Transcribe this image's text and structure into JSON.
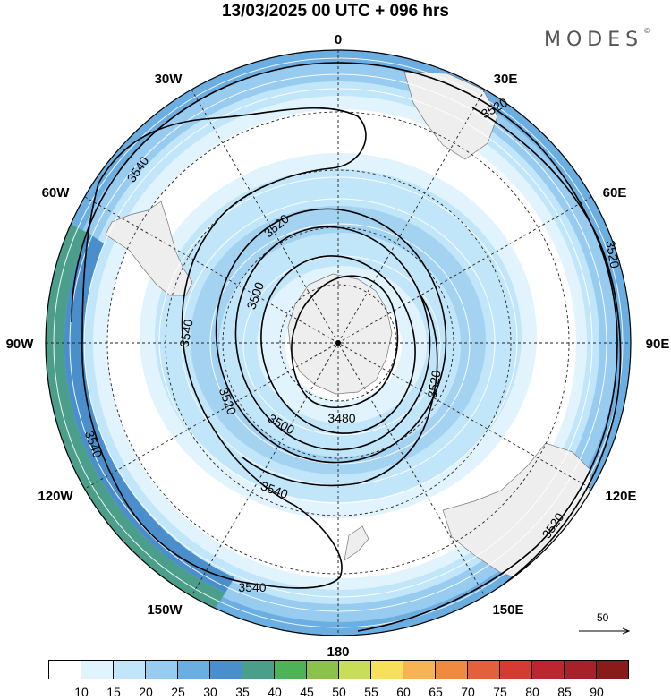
{
  "title": "13/03/2025  00 UTC  + 096 hrs",
  "brand": "MODES",
  "brand_mark": "©",
  "map": {
    "projection": "south-polar-stereographic",
    "longitude_labels": [
      "0",
      "30E",
      "60E",
      "90E",
      "120E",
      "150E",
      "180",
      "150W",
      "120W",
      "90W",
      "60W",
      "30W"
    ],
    "contour_labels": [
      "3520",
      "3540",
      "3520",
      "3500",
      "3540",
      "3520",
      "3500",
      "3480",
      "3520",
      "3540",
      "3540",
      "3520",
      "3540",
      "3520"
    ],
    "contour_levels": [
      3480,
      3500,
      3520,
      3540
    ],
    "land_color": "#eeeeee",
    "grid_style": "dashed"
  },
  "reference_vector": {
    "value": "50"
  },
  "colorbar": {
    "ticks": [
      "10",
      "15",
      "20",
      "25",
      "30",
      "35",
      "40",
      "45",
      "50",
      "55",
      "60",
      "65",
      "70",
      "75",
      "80",
      "85",
      "90"
    ],
    "colors": [
      "#ffffff",
      "#e1f3fd",
      "#c2e6f9",
      "#97cbf0",
      "#6aaee2",
      "#4a8fcb",
      "#4b9f8a",
      "#4cb457",
      "#8bc34a",
      "#c9de58",
      "#f8e15a",
      "#f7b452",
      "#f1893e",
      "#e5603a",
      "#d63b33",
      "#bd2530",
      "#a8202a",
      "#8b1a1a"
    ]
  }
}
